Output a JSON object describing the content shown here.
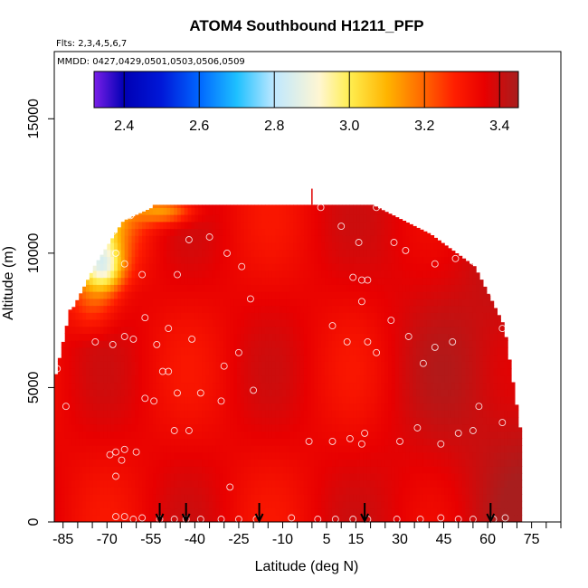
{
  "chart_data": {
    "type": "heatmap",
    "title": "ATOM4 Southbound H1211_PFP",
    "flights_label": "Flts: 2,3,4,5,6,7",
    "dates_label": "MMDD: 0427,0429,0501,0503,0506,0509",
    "xlabel": "Latitude (deg N)",
    "ylabel": "Altitude (m)",
    "xlim": [
      -88,
      85
    ],
    "ylim": [
      0,
      17500
    ],
    "x_ticks": [
      -85,
      -70,
      -55,
      -40,
      -25,
      -10,
      5,
      15,
      30,
      45,
      60,
      75
    ],
    "x_minor_ticks": [
      -80,
      -75,
      -65,
      -60,
      -50,
      -45,
      -35,
      -30,
      -20,
      -15,
      -5,
      0,
      10,
      20,
      25,
      35,
      40,
      50,
      55,
      65,
      70,
      80,
      85
    ],
    "y_ticks": [
      0,
      5000,
      10000,
      15000
    ],
    "colorbar": {
      "min": 2.32,
      "max": 3.45,
      "ticks": [
        2.4,
        2.6,
        2.8,
        3.0,
        3.2,
        3.4
      ],
      "tick_labels": [
        "2.4",
        "2.6",
        "2.8",
        "3.0",
        "3.2",
        "3.4"
      ],
      "stops": [
        {
          "v": 2.32,
          "c": "#7a1fe8"
        },
        {
          "v": 2.4,
          "c": "#0000b4"
        },
        {
          "v": 2.5,
          "c": "#0018d8"
        },
        {
          "v": 2.6,
          "c": "#0066ff"
        },
        {
          "v": 2.7,
          "c": "#1ec0ff"
        },
        {
          "v": 2.8,
          "c": "#bfe8ff"
        },
        {
          "v": 2.92,
          "c": "#fff6d2"
        },
        {
          "v": 3.0,
          "c": "#ffee50"
        },
        {
          "v": 3.1,
          "c": "#ffb400"
        },
        {
          "v": 3.2,
          "c": "#ff6400"
        },
        {
          "v": 3.28,
          "c": "#ff1e00"
        },
        {
          "v": 3.36,
          "c": "#e80000"
        },
        {
          "v": 3.45,
          "c": "#a81e1e"
        }
      ]
    },
    "profile_arrows_lat": [
      -52,
      -43,
      -18,
      18,
      61
    ],
    "sample_points": [
      {
        "lat": -58,
        "alt": 11700
      },
      {
        "lat": -62,
        "alt": 11400
      },
      {
        "lat": -68,
        "alt": 10800
      },
      {
        "lat": -71,
        "alt": 10400
      },
      {
        "lat": -67,
        "alt": 10000
      },
      {
        "lat": -64,
        "alt": 9600
      },
      {
        "lat": -58,
        "alt": 9200
      },
      {
        "lat": -42,
        "alt": 10500
      },
      {
        "lat": -35,
        "alt": 10600
      },
      {
        "lat": -29,
        "alt": 10000
      },
      {
        "lat": -24,
        "alt": 9500
      },
      {
        "lat": -46,
        "alt": 9200
      },
      {
        "lat": -21,
        "alt": 8300
      },
      {
        "lat": 3,
        "alt": 11700
      },
      {
        "lat": 10,
        "alt": 11000
      },
      {
        "lat": 22,
        "alt": 11700
      },
      {
        "lat": 16,
        "alt": 10400
      },
      {
        "lat": 28,
        "alt": 10400
      },
      {
        "lat": 32,
        "alt": 10100
      },
      {
        "lat": 42,
        "alt": 9600
      },
      {
        "lat": 49,
        "alt": 9800
      },
      {
        "lat": 55,
        "alt": 9700
      },
      {
        "lat": 62,
        "alt": 8500
      },
      {
        "lat": 14,
        "alt": 9100
      },
      {
        "lat": 17,
        "alt": 9000
      },
      {
        "lat": 19,
        "alt": 9000
      },
      {
        "lat": 17,
        "alt": 8200
      },
      {
        "lat": -57,
        "alt": 7600
      },
      {
        "lat": -68,
        "alt": 6600
      },
      {
        "lat": -64,
        "alt": 6900
      },
      {
        "lat": -61,
        "alt": 6800
      },
      {
        "lat": -74,
        "alt": 6700
      },
      {
        "lat": -49,
        "alt": 7200
      },
      {
        "lat": -53,
        "alt": 6600
      },
      {
        "lat": -41,
        "alt": 6800
      },
      {
        "lat": -51,
        "alt": 5600
      },
      {
        "lat": -49,
        "alt": 5600
      },
      {
        "lat": -30,
        "alt": 5800
      },
      {
        "lat": -25,
        "alt": 6300
      },
      {
        "lat": -46,
        "alt": 4800
      },
      {
        "lat": -38,
        "alt": 4800
      },
      {
        "lat": -31,
        "alt": 4500
      },
      {
        "lat": -57,
        "alt": 4600
      },
      {
        "lat": -54,
        "alt": 4500
      },
      {
        "lat": -87,
        "alt": 5700
      },
      {
        "lat": -84,
        "alt": 4300
      },
      {
        "lat": -20,
        "alt": 4900
      },
      {
        "lat": 7,
        "alt": 7300
      },
      {
        "lat": 12,
        "alt": 6700
      },
      {
        "lat": 19,
        "alt": 6700
      },
      {
        "lat": 22,
        "alt": 6300
      },
      {
        "lat": 27,
        "alt": 7500
      },
      {
        "lat": 33,
        "alt": 6900
      },
      {
        "lat": 38,
        "alt": 5900
      },
      {
        "lat": 42,
        "alt": 6500
      },
      {
        "lat": 48,
        "alt": 6700
      },
      {
        "lat": 65,
        "alt": 7200
      },
      {
        "lat": -47,
        "alt": 3400
      },
      {
        "lat": -42,
        "alt": 3400
      },
      {
        "lat": -64,
        "alt": 2700
      },
      {
        "lat": -67,
        "alt": 2600
      },
      {
        "lat": -69,
        "alt": 2500
      },
      {
        "lat": -65,
        "alt": 2300
      },
      {
        "lat": -60,
        "alt": 2600
      },
      {
        "lat": -67,
        "alt": 1700
      },
      {
        "lat": -28,
        "alt": 1300
      },
      {
        "lat": -1,
        "alt": 3000
      },
      {
        "lat": 7,
        "alt": 3000
      },
      {
        "lat": 13,
        "alt": 3100
      },
      {
        "lat": 17,
        "alt": 2900
      },
      {
        "lat": 18,
        "alt": 3300
      },
      {
        "lat": 30,
        "alt": 3000
      },
      {
        "lat": 36,
        "alt": 3500
      },
      {
        "lat": 44,
        "alt": 2900
      },
      {
        "lat": 50,
        "alt": 3300
      },
      {
        "lat": 55,
        "alt": 3400
      },
      {
        "lat": 57,
        "alt": 4300
      },
      {
        "lat": 65,
        "alt": 3700
      },
      {
        "lat": -67,
        "alt": 200
      },
      {
        "lat": -64,
        "alt": 200
      },
      {
        "lat": -61,
        "alt": 100
      },
      {
        "lat": -58,
        "alt": 150
      },
      {
        "lat": -52,
        "alt": 100
      },
      {
        "lat": -47,
        "alt": 100
      },
      {
        "lat": -43,
        "alt": 100
      },
      {
        "lat": -38,
        "alt": 100
      },
      {
        "lat": -31,
        "alt": 100
      },
      {
        "lat": -25,
        "alt": 100
      },
      {
        "lat": -19,
        "alt": 100
      },
      {
        "lat": -7,
        "alt": 150
      },
      {
        "lat": 2,
        "alt": 100
      },
      {
        "lat": 8,
        "alt": 100
      },
      {
        "lat": 14,
        "alt": 100
      },
      {
        "lat": 19,
        "alt": 100
      },
      {
        "lat": 29,
        "alt": 100
      },
      {
        "lat": 37,
        "alt": 100
      },
      {
        "lat": 44,
        "alt": 150
      },
      {
        "lat": 50,
        "alt": 100
      },
      {
        "lat": 55,
        "alt": 100
      },
      {
        "lat": 62,
        "alt": 100
      },
      {
        "lat": 66,
        "alt": 150
      }
    ]
  }
}
